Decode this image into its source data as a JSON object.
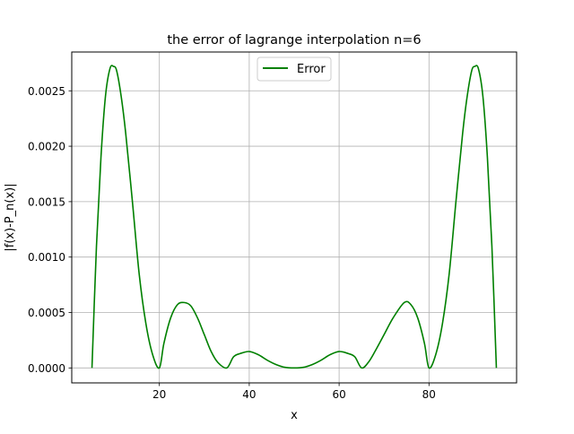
{
  "chart_data": {
    "type": "line",
    "title": "the error of lagrange interpolation n=6",
    "xlabel": "x",
    "ylabel": "|f(x)-P_n(x)|",
    "xlim": [
      0.5,
      99.5
    ],
    "ylim": [
      -0.000135,
      0.00285
    ],
    "grid": true,
    "legend_position": "top-center",
    "x_ticks": [
      20,
      40,
      60,
      80
    ],
    "y_ticks": [
      0.0,
      0.0005,
      0.001,
      0.0015,
      0.002,
      0.0025
    ],
    "x_tick_labels": [
      "20",
      "40",
      "60",
      "80"
    ],
    "y_tick_labels": [
      "0.0000",
      "0.0005",
      "0.0010",
      "0.0015",
      "0.0020",
      "0.0025"
    ],
    "series": [
      {
        "name": "Error",
        "color": "#008000",
        "x": [
          5,
          6,
          7,
          8,
          9,
          9.8,
          10.5,
          11.5,
          12.5,
          14,
          15.5,
          17,
          18.5,
          20,
          21,
          22.5,
          24,
          25.5,
          27,
          28.5,
          30,
          31.5,
          33,
          35,
          36.5,
          38,
          40,
          42,
          44,
          46,
          48,
          50,
          52,
          54,
          56,
          58,
          60,
          62,
          63.5,
          65,
          66.5,
          68,
          70,
          72,
          74.5,
          76,
          77.5,
          79,
          80,
          81.5,
          83,
          84.5,
          86,
          87.5,
          88.5,
          89.5,
          90.2,
          91,
          92,
          93,
          94,
          95
        ],
        "y": [
          0.0,
          0.0011,
          0.0019,
          0.00245,
          0.0027,
          0.00272,
          0.00268,
          0.00245,
          0.00212,
          0.0015,
          0.00085,
          0.0004,
          0.00012,
          0.0,
          0.00022,
          0.00045,
          0.00057,
          0.00059,
          0.00056,
          0.00045,
          0.0003,
          0.00015,
          5e-05,
          0.0,
          0.0001,
          0.00013,
          0.000148,
          0.00012,
          7e-05,
          3e-05,
          5e-06,
          0.0,
          5e-06,
          3e-05,
          7e-05,
          0.00012,
          0.000148,
          0.00013,
          0.0001,
          0.0,
          5e-05,
          0.00015,
          0.0003,
          0.00045,
          0.00059,
          0.00057,
          0.00045,
          0.00022,
          0.0,
          0.00012,
          0.0004,
          0.00085,
          0.0015,
          0.00212,
          0.00245,
          0.00268,
          0.00272,
          0.0027,
          0.00245,
          0.0019,
          0.0011,
          0.0
        ]
      }
    ]
  }
}
